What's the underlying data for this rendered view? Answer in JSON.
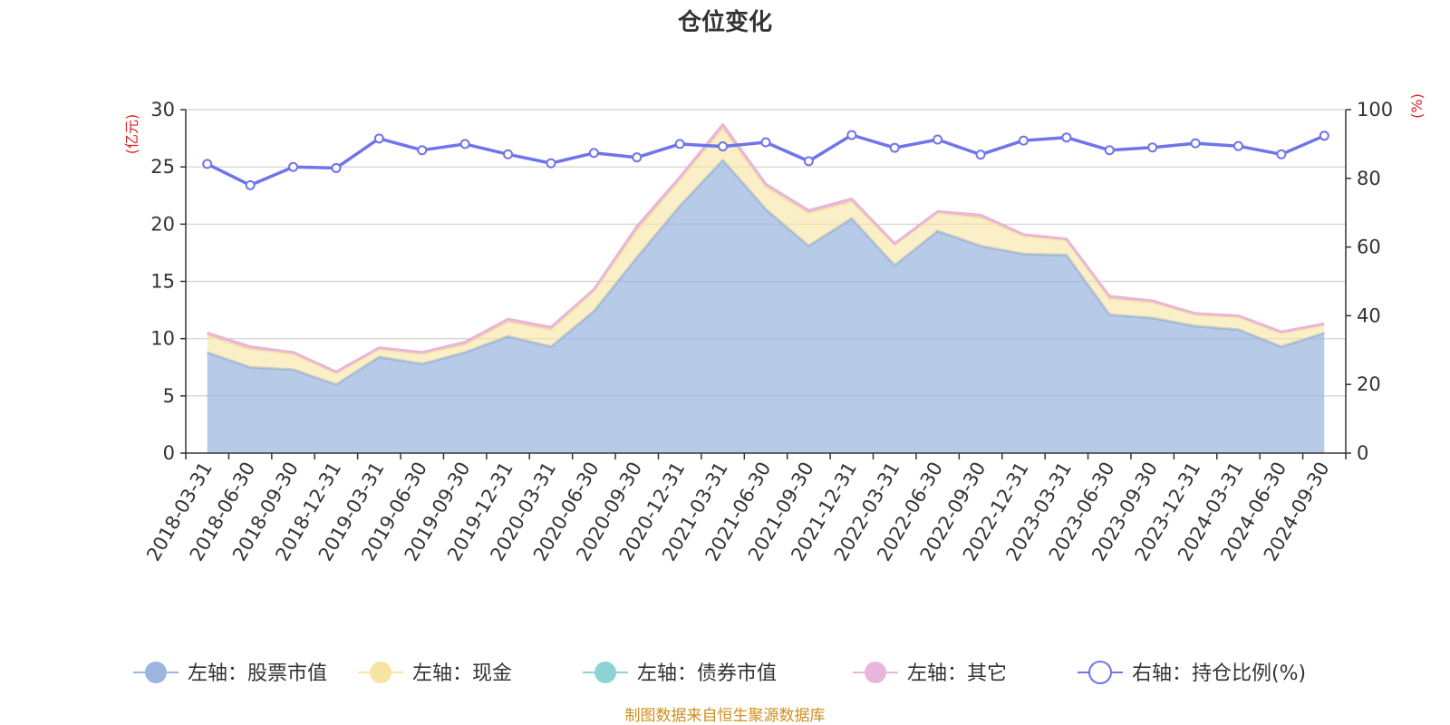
{
  "chart_data": {
    "type": "area",
    "title": "仓位变化",
    "source_note": "制图数据来自恒生聚源数据库",
    "left_axis": {
      "unit": "(亿元)",
      "ylim": [
        0,
        30
      ],
      "ticks": [
        0,
        5,
        10,
        15,
        20,
        25,
        30
      ]
    },
    "right_axis": {
      "unit": "(%)",
      "ylim": [
        0,
        100
      ],
      "ticks": [
        0,
        20,
        40,
        60,
        80,
        100
      ]
    },
    "categories": [
      "2018-03-31",
      "2018-06-30",
      "2018-09-30",
      "2018-12-31",
      "2019-03-31",
      "2019-06-30",
      "2019-09-30",
      "2019-12-31",
      "2020-03-31",
      "2020-06-30",
      "2020-09-30",
      "2020-12-31",
      "2021-03-31",
      "2021-06-30",
      "2021-09-30",
      "2021-12-31",
      "2022-03-31",
      "2022-06-30",
      "2022-09-30",
      "2022-12-31",
      "2023-03-31",
      "2023-06-30",
      "2023-09-30",
      "2023-12-31",
      "2024-03-31",
      "2024-06-30",
      "2024-09-30"
    ],
    "series": [
      {
        "name": "左轴：股票市值",
        "axis": "left",
        "kind": "stacked-area",
        "color": "#9bb5de",
        "values": [
          8.8,
          7.5,
          7.3,
          6.0,
          8.4,
          7.8,
          8.8,
          10.2,
          9.3,
          12.4,
          17.1,
          21.6,
          25.6,
          21.3,
          18.1,
          20.5,
          16.4,
          19.4,
          18.1,
          17.4,
          17.3,
          12.1,
          11.8,
          11.1,
          10.8,
          9.3,
          10.5
        ]
      },
      {
        "name": "左轴：现金",
        "axis": "left",
        "kind": "stacked-area",
        "color": "#f7e4a2",
        "values": [
          1.5,
          1.6,
          1.4,
          1.0,
          0.7,
          0.9,
          0.7,
          1.3,
          1.5,
          1.8,
          2.4,
          2.3,
          2.8,
          2.0,
          2.9,
          1.5,
          1.8,
          1.6,
          2.5,
          1.6,
          1.3,
          1.4,
          1.4,
          1.0,
          1.1,
          1.2,
          0.7
        ]
      },
      {
        "name": "左轴：债券市值",
        "axis": "left",
        "kind": "stacked-area",
        "color": "#8dd3d6",
        "values": [
          0,
          0,
          0,
          0,
          0,
          0,
          0,
          0,
          0,
          0,
          0,
          0,
          0,
          0,
          0,
          0,
          0,
          0,
          0,
          0,
          0,
          0,
          0,
          0,
          0,
          0,
          0
        ]
      },
      {
        "name": "左轴：其它",
        "axis": "left",
        "kind": "stacked-area",
        "color": "#e8b6da",
        "values": [
          0.2,
          0.2,
          0.1,
          0.1,
          0.1,
          0.1,
          0.2,
          0.2,
          0.2,
          0.1,
          0.3,
          0.2,
          0.3,
          0.2,
          0.2,
          0.2,
          0.1,
          0.1,
          0.2,
          0.1,
          0.1,
          0.2,
          0.1,
          0.1,
          0.1,
          0.1,
          0.1
        ]
      },
      {
        "name": "右轴：持仓比例(%)",
        "axis": "right",
        "kind": "line",
        "color": "#6f74ea",
        "values": [
          84.2,
          78.0,
          83.3,
          83.0,
          91.6,
          88.2,
          90.0,
          87.0,
          84.4,
          87.4,
          86.1,
          90.0,
          89.3,
          90.5,
          85.0,
          92.6,
          88.9,
          91.3,
          86.9,
          91.0,
          91.9,
          88.2,
          89.0,
          90.2,
          89.4,
          87.0,
          92.4
        ]
      }
    ],
    "grid": true,
    "legend_position": "bottom"
  }
}
